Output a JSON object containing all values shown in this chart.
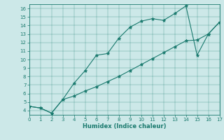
{
  "xlabel": "Humidex (Indice chaleur)",
  "background_color": "#cce8e8",
  "line_color": "#1a7a6e",
  "x_line1": [
    0,
    1,
    2,
    3,
    4,
    5,
    6,
    7,
    8,
    9,
    10,
    11,
    12,
    13,
    14,
    15,
    16,
    17
  ],
  "y_line1": [
    4.5,
    4.3,
    3.7,
    5.3,
    7.2,
    8.7,
    10.5,
    10.7,
    12.5,
    13.8,
    14.5,
    14.8,
    14.6,
    15.4,
    16.3,
    10.5,
    13.0,
    14.4
  ],
  "x_line2": [
    0,
    1,
    2,
    3,
    4,
    5,
    6,
    7,
    8,
    9,
    10,
    11,
    12,
    13,
    14,
    15,
    16,
    17
  ],
  "y_line2": [
    4.5,
    4.3,
    3.7,
    5.3,
    5.7,
    6.3,
    6.8,
    7.4,
    8.0,
    8.7,
    9.4,
    10.1,
    10.8,
    11.5,
    12.2,
    12.3,
    13.0,
    14.4
  ],
  "xlim": [
    0,
    17
  ],
  "ylim": [
    3.5,
    16.5
  ],
  "xticks": [
    0,
    1,
    2,
    3,
    4,
    5,
    6,
    7,
    8,
    9,
    10,
    11,
    12,
    13,
    14,
    15,
    16,
    17
  ],
  "yticks": [
    4,
    5,
    6,
    7,
    8,
    9,
    10,
    11,
    12,
    13,
    14,
    15,
    16
  ]
}
